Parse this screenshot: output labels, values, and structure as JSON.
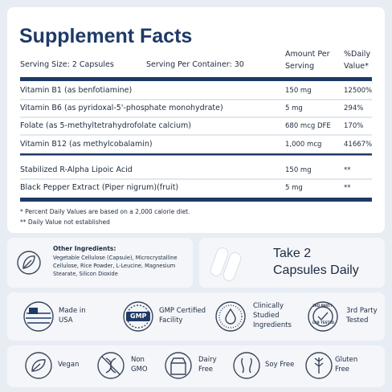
{
  "header": {
    "title": "Supplement Facts",
    "serving_size": "Serving Size: 2 Capsules",
    "servings_per_container": "Serving Per Container: 30",
    "amount_col": [
      "Amount Per",
      "Serving"
    ],
    "dv_col": [
      "%Daily",
      "Value*"
    ]
  },
  "nutrients": [
    [
      "Vitamin B1 (as benfotiamine)",
      "150 mg",
      "12500%"
    ],
    [
      "Vitamin B6 (as pyridoxal-5'-phosphate monohydrate)",
      "5 mg",
      "294%"
    ],
    [
      "Folate (as 5-methyltetrahydrofolate calcium)",
      "680 mcg DFE",
      "170%"
    ],
    [
      "Vitamin B12 (as methylcobalamin)",
      "1,000 mcg",
      "41667%"
    ]
  ],
  "other_compounds": [
    [
      "Stabilized R-Alpha Lipoic Acid",
      "150 mg",
      "**"
    ],
    [
      "Black Pepper Extract (Piper nigrum)(fruit)",
      "5 mg",
      "**"
    ]
  ],
  "footnotes": [
    "* Percent Daily Values are based on a 2,000 calorie diet.",
    "** Daily Value not established"
  ],
  "ingredients": {
    "title": "Other Ingredients:",
    "text": "Vegetable Cellulose (Capsule), Microcrystalline Cellulose, Rice Powder, L-Leucine, Magnesium Stearate, Silicon Dioxide"
  },
  "dosage": [
    "Take 2",
    "Capsules Daily"
  ],
  "badges": [
    {
      "label": [
        "Made in",
        "USA"
      ]
    },
    {
      "icon_text": "GMP",
      "label": [
        "GMP Certified",
        "Facility"
      ]
    },
    {
      "label": [
        "Clinically",
        "Studied",
        "Ingredients"
      ]
    },
    {
      "icon_text": [
        "3RD PARTY",
        "LAB TESTED"
      ],
      "label": [
        "3rd Party",
        "Tested"
      ]
    }
  ],
  "features": [
    [
      "Vegan"
    ],
    [
      "Non",
      "GMO"
    ],
    [
      "Dairy",
      "Free"
    ],
    [
      "Soy Free"
    ],
    [
      "Gluten",
      "Free"
    ]
  ]
}
